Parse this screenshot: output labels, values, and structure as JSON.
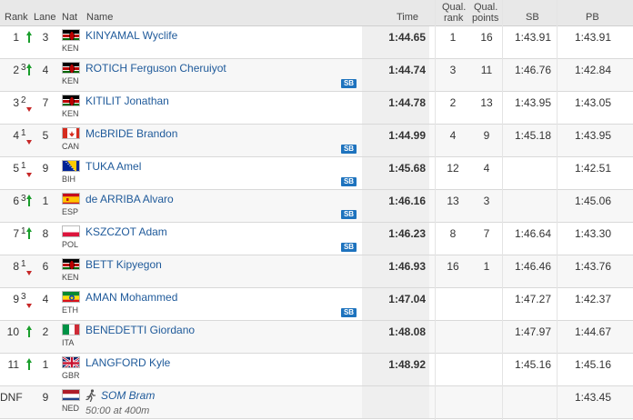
{
  "columns": {
    "rank": "Rank",
    "lane": "Lane",
    "nat": "Nat",
    "name": "Name",
    "time": "Time",
    "qual_rank_1": "Qual.",
    "qual_rank_2": "rank",
    "qual_points_1": "Qual.",
    "qual_points_2": "points",
    "sb": "SB",
    "pb": "PB"
  },
  "colors": {
    "link": "#1f5a9a",
    "up_arrow": "#1a9e2c",
    "down_arrow": "#c62828",
    "sb_badge": "#1e73be"
  },
  "rows": [
    {
      "rank": "1",
      "move": "",
      "dir": "up",
      "lane": "3",
      "flag": "KEN",
      "nat": "KEN",
      "name": "KINYAMAL Wyclife",
      "badge": "",
      "time": "1:44.65",
      "qual_rank": "1",
      "qual_points": "16",
      "sb": "1:43.91",
      "pb": "1:43.91"
    },
    {
      "rank": "2",
      "move": "3",
      "dir": "up",
      "lane": "4",
      "flag": "KEN",
      "nat": "KEN",
      "name": "ROTICH Ferguson Cheruiyot",
      "badge": "SB",
      "time": "1:44.74",
      "qual_rank": "3",
      "qual_points": "11",
      "sb": "1:46.76",
      "pb": "1:42.84"
    },
    {
      "rank": "3",
      "move": "2",
      "dir": "down",
      "lane": "7",
      "flag": "KEN",
      "nat": "KEN",
      "name": "KITILIT Jonathan",
      "badge": "",
      "time": "1:44.78",
      "qual_rank": "2",
      "qual_points": "13",
      "sb": "1:43.95",
      "pb": "1:43.05"
    },
    {
      "rank": "4",
      "move": "1",
      "dir": "down",
      "lane": "5",
      "flag": "CAN",
      "nat": "CAN",
      "name": "McBRIDE Brandon",
      "badge": "SB",
      "time": "1:44.99",
      "qual_rank": "4",
      "qual_points": "9",
      "sb": "1:45.18",
      "pb": "1:43.95"
    },
    {
      "rank": "5",
      "move": "1",
      "dir": "down",
      "lane": "9",
      "flag": "BIH",
      "nat": "BIH",
      "name": "TUKA Amel",
      "badge": "SB",
      "time": "1:45.68",
      "qual_rank": "12",
      "qual_points": "4",
      "sb": "",
      "pb": "1:42.51"
    },
    {
      "rank": "6",
      "move": "3",
      "dir": "up",
      "lane": "1",
      "flag": "ESP",
      "nat": "ESP",
      "name": "de ARRIBA Alvaro",
      "badge": "SB",
      "time": "1:46.16",
      "qual_rank": "13",
      "qual_points": "3",
      "sb": "",
      "pb": "1:45.06"
    },
    {
      "rank": "7",
      "move": "1",
      "dir": "up",
      "lane": "8",
      "flag": "POL",
      "nat": "POL",
      "name": "KSZCZOT Adam",
      "badge": "SB",
      "time": "1:46.23",
      "qual_rank": "8",
      "qual_points": "7",
      "sb": "1:46.64",
      "pb": "1:43.30"
    },
    {
      "rank": "8",
      "move": "1",
      "dir": "down",
      "lane": "6",
      "flag": "KEN",
      "nat": "KEN",
      "name": "BETT Kipyegon",
      "badge": "",
      "time": "1:46.93",
      "qual_rank": "16",
      "qual_points": "1",
      "sb": "1:46.46",
      "pb": "1:43.76"
    },
    {
      "rank": "9",
      "move": "3",
      "dir": "down",
      "lane": "4",
      "flag": "ETH",
      "nat": "ETH",
      "name": "AMAN Mohammed",
      "badge": "SB",
      "time": "1:47.04",
      "qual_rank": "",
      "qual_points": "",
      "sb": "1:47.27",
      "pb": "1:42.37"
    },
    {
      "rank": "10",
      "move": "",
      "dir": "up",
      "lane": "2",
      "flag": "ITA",
      "nat": "ITA",
      "name": "BENEDETTI Giordano",
      "badge": "",
      "time": "1:48.08",
      "qual_rank": "",
      "qual_points": "",
      "sb": "1:47.97",
      "pb": "1:44.67"
    },
    {
      "rank": "11",
      "move": "",
      "dir": "up",
      "lane": "1",
      "flag": "GBR",
      "nat": "GBR",
      "name": "LANGFORD Kyle",
      "badge": "",
      "time": "1:48.92",
      "qual_rank": "",
      "qual_points": "",
      "sb": "1:45.16",
      "pb": "1:45.16"
    },
    {
      "rank": "DNF",
      "move": "",
      "dir": "",
      "lane": "9",
      "flag": "NED",
      "nat": "NED",
      "name": "SOM Bram",
      "badge": "",
      "note": "50:00 at 400m",
      "time": "",
      "qual_rank": "",
      "qual_points": "",
      "sb": "",
      "pb": "1:43.45"
    }
  ]
}
